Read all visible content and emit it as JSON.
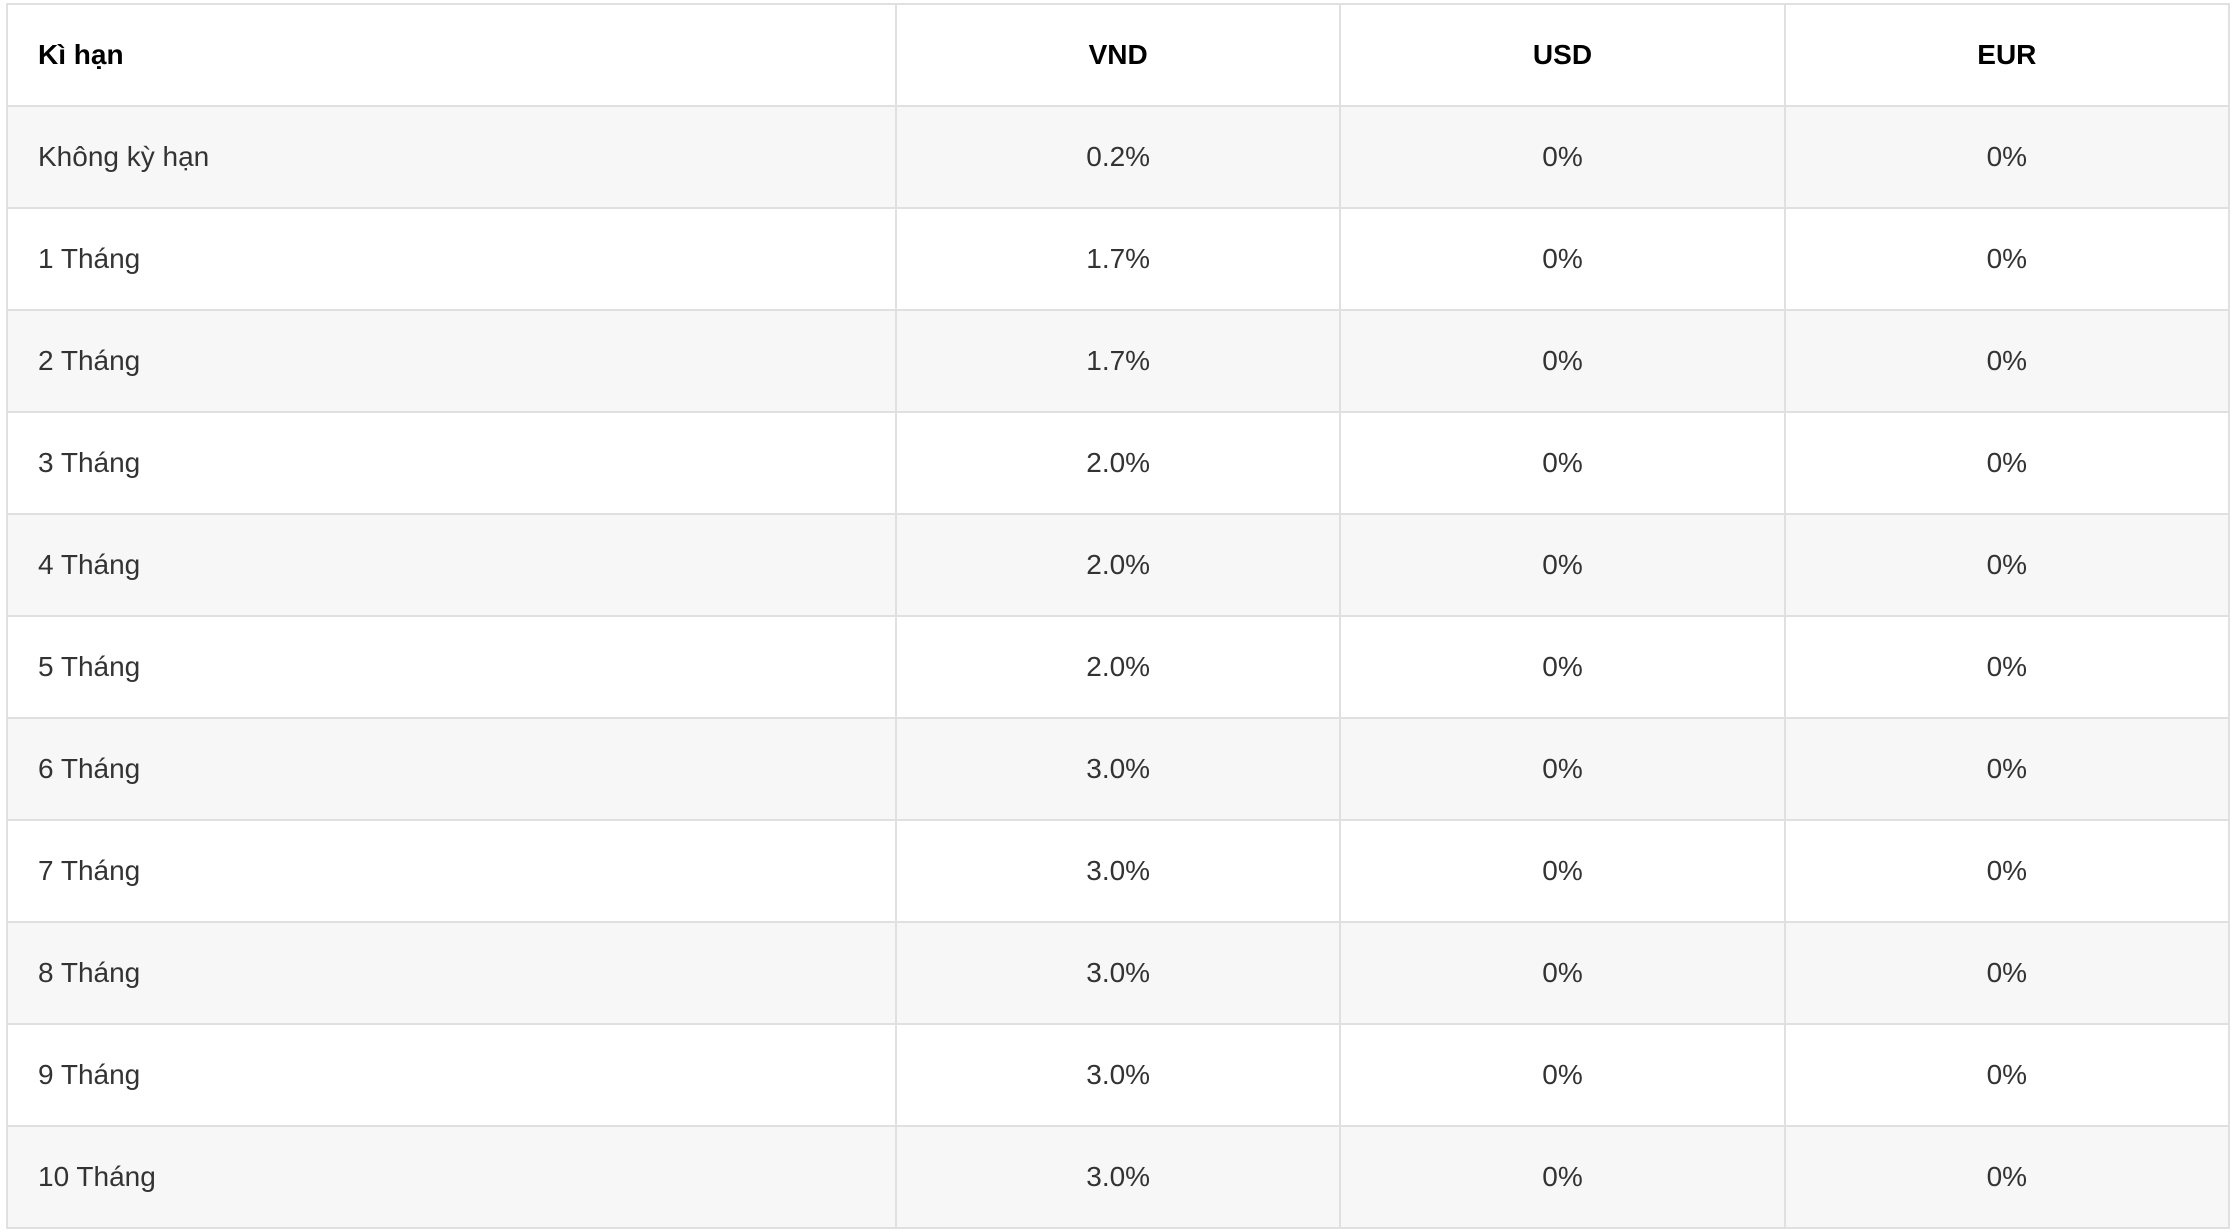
{
  "table": {
    "header": [
      "Kì hạn",
      "VND",
      "USD",
      "EUR"
    ],
    "rows": [
      [
        "Không kỳ hạn",
        "0.2%",
        "0%",
        "0%"
      ],
      [
        "1 Tháng",
        "1.7%",
        "0%",
        "0%"
      ],
      [
        "2 Tháng",
        "1.7%",
        "0%",
        "0%"
      ],
      [
        "3 Tháng",
        "2.0%",
        "0%",
        "0%"
      ],
      [
        "4 Tháng",
        "2.0%",
        "0%",
        "0%"
      ],
      [
        "5 Tháng",
        "2.0%",
        "0%",
        "0%"
      ],
      [
        "6 Tháng",
        "3.0%",
        "0%",
        "0%"
      ],
      [
        "7 Tháng",
        "3.0%",
        "0%",
        "0%"
      ],
      [
        "8 Tháng",
        "3.0%",
        "0%",
        "0%"
      ],
      [
        "9 Tháng",
        "3.0%",
        "0%",
        "0%"
      ],
      [
        "10 Tháng",
        "3.0%",
        "0%",
        "0%"
      ]
    ]
  }
}
